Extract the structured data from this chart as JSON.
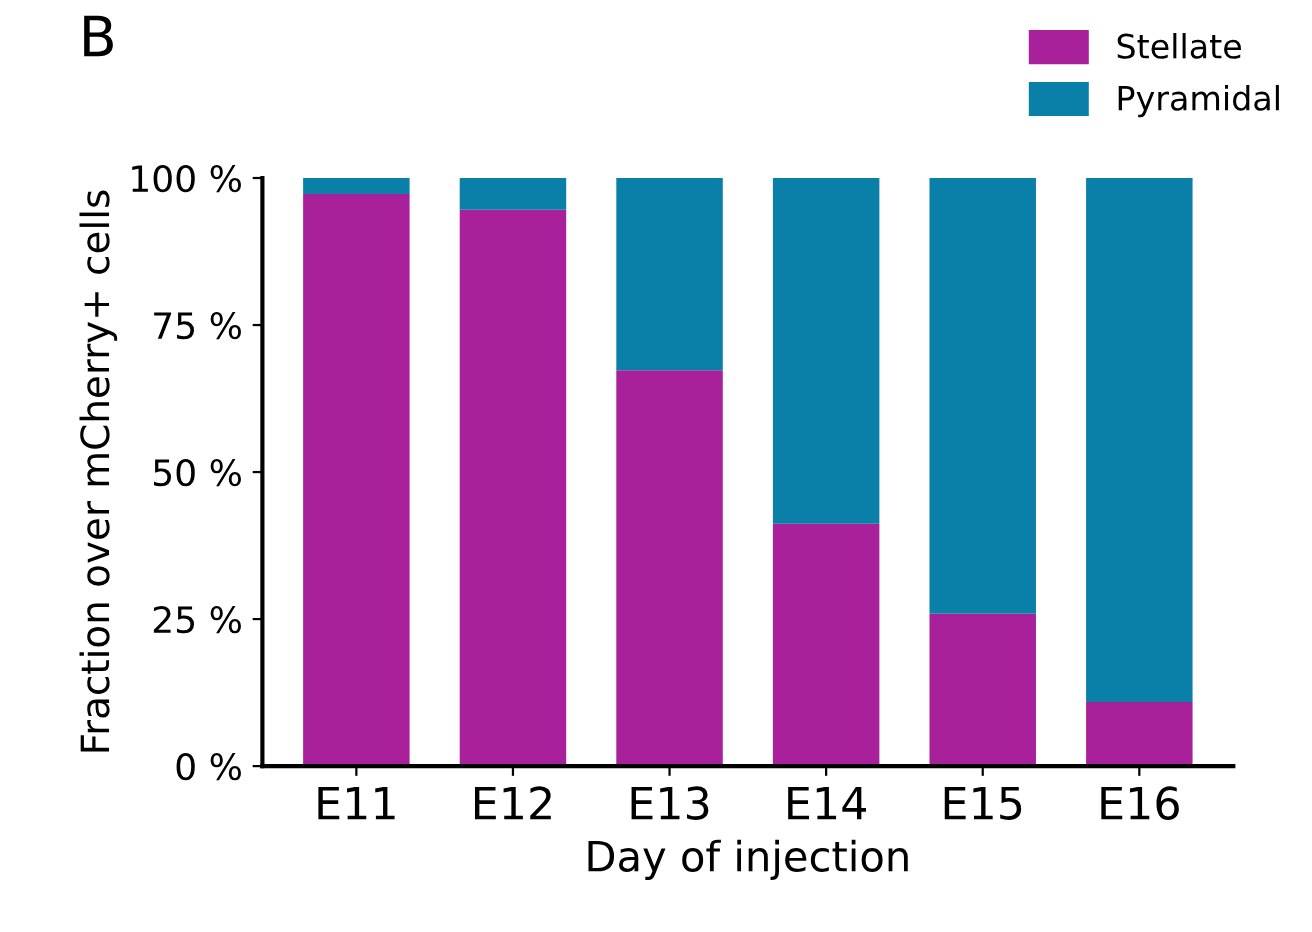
{
  "chart_data": {
    "type": "bar",
    "stacked": true,
    "xlabel": "Day of injection",
    "ylabel": "Fraction over mCherry+ cells",
    "annotations": [
      "B"
    ],
    "categories": [
      "E11",
      "E12",
      "E13",
      "E14",
      "E15",
      "E16"
    ],
    "series": [
      {
        "name": "Stellate",
        "color": "#a8209a",
        "values": [
          97.3,
          94.6,
          67.3,
          41.2,
          25.9,
          10.9
        ]
      },
      {
        "name": "Pyramidal",
        "color": "#0a7fa8",
        "values": [
          2.7,
          5.4,
          32.7,
          58.8,
          74.1,
          89.1
        ]
      }
    ],
    "ylim": [
      0,
      100
    ],
    "yticks": [
      {
        "value": 0,
        "label": "0 %"
      },
      {
        "value": 25,
        "label": "25 %"
      },
      {
        "value": 50,
        "label": "50 %"
      },
      {
        "value": 75,
        "label": "75 %"
      },
      {
        "value": 100,
        "label": "100 %"
      }
    ],
    "grid": false,
    "legend": "top right"
  }
}
